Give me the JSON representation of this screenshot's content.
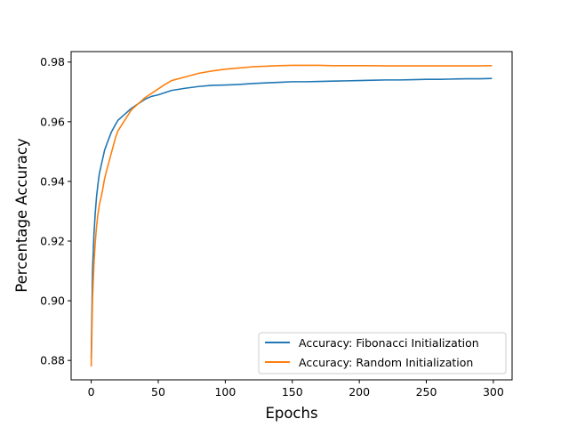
{
  "chart_data": {
    "type": "line",
    "title": "",
    "xlabel": "Epochs",
    "ylabel": "Percentage Accuracy",
    "xlim": [
      -15,
      314
    ],
    "ylim": [
      0.8735,
      0.9835
    ],
    "x_ticks": [
      0,
      50,
      100,
      150,
      200,
      250,
      300
    ],
    "x_tick_labels": [
      "0",
      "50",
      "100",
      "150",
      "200",
      "250",
      "300"
    ],
    "y_ticks": [
      0.88,
      0.9,
      0.92,
      0.94,
      0.96,
      0.98
    ],
    "y_tick_labels": [
      "0.88",
      "0.90",
      "0.92",
      "0.94",
      "0.96",
      "0.98"
    ],
    "grid": false,
    "legend_position": "lower-right",
    "series": [
      {
        "name": "Accuracy: Fibonacci Initialization",
        "color": "#1f77b4",
        "x": [
          0,
          1,
          2,
          3,
          4,
          5,
          6,
          8,
          10,
          12,
          15,
          18,
          20,
          25,
          30,
          35,
          40,
          45,
          50,
          60,
          70,
          80,
          90,
          100,
          110,
          120,
          130,
          140,
          150,
          160,
          170,
          180,
          190,
          200,
          210,
          220,
          230,
          240,
          250,
          260,
          270,
          280,
          290,
          299
        ],
        "y": [
          0.8805,
          0.9105,
          0.922,
          0.9295,
          0.935,
          0.939,
          0.9425,
          0.9465,
          0.9505,
          0.953,
          0.9565,
          0.959,
          0.9605,
          0.9625,
          0.9645,
          0.966,
          0.9675,
          0.9685,
          0.969,
          0.9705,
          0.9712,
          0.9718,
          0.9722,
          0.9723,
          0.9725,
          0.9728,
          0.973,
          0.9732,
          0.9734,
          0.9734,
          0.9735,
          0.9736,
          0.9737,
          0.9738,
          0.9739,
          0.974,
          0.974,
          0.9741,
          0.9742,
          0.9742,
          0.9743,
          0.9744,
          0.9744,
          0.9745
        ]
      },
      {
        "name": "Accuracy: Random Initialization",
        "color": "#ff7f0e",
        "x": [
          0,
          1,
          2,
          3,
          4,
          5,
          6,
          8,
          10,
          12,
          15,
          18,
          20,
          25,
          30,
          35,
          40,
          45,
          50,
          55,
          60,
          70,
          80,
          90,
          100,
          110,
          120,
          130,
          140,
          150,
          160,
          170,
          180,
          190,
          200,
          210,
          220,
          230,
          240,
          250,
          260,
          270,
          280,
          290,
          299
        ],
        "y": [
          0.878,
          0.901,
          0.912,
          0.9195,
          0.925,
          0.929,
          0.932,
          0.936,
          0.941,
          0.9445,
          0.9495,
          0.9545,
          0.957,
          0.9605,
          0.964,
          0.966,
          0.968,
          0.9695,
          0.971,
          0.9725,
          0.9738,
          0.975,
          0.9762,
          0.977,
          0.9776,
          0.978,
          0.9784,
          0.9786,
          0.9788,
          0.9789,
          0.9789,
          0.9789,
          0.9788,
          0.9788,
          0.9788,
          0.9788,
          0.9787,
          0.9787,
          0.9787,
          0.9787,
          0.9787,
          0.9787,
          0.9787,
          0.9787,
          0.9788
        ]
      }
    ]
  }
}
